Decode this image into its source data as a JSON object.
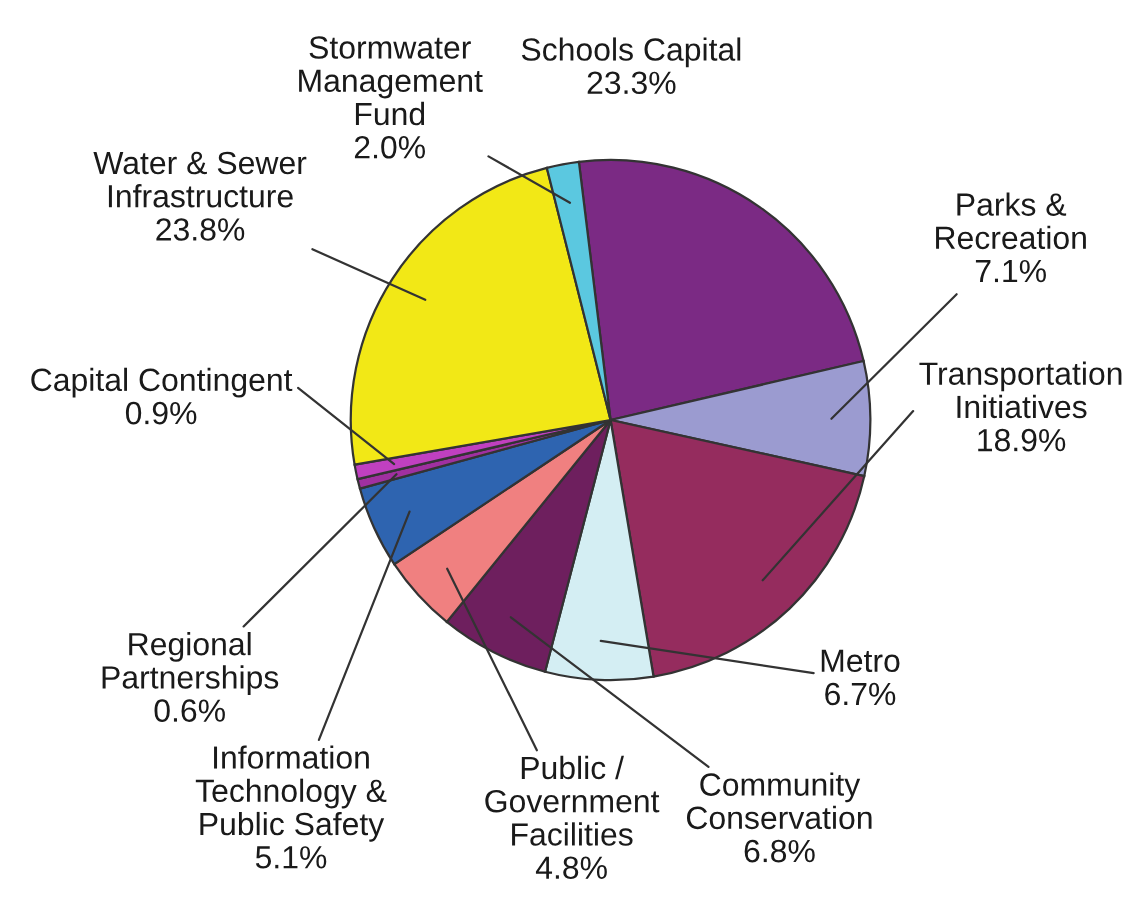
{
  "chart_data": {
    "type": "pie",
    "categories": [
      "Schools Capital",
      "Parks &\nRecreation",
      "Transportation\nInitiatives",
      "Metro",
      "Community\nConservation",
      "Public /\nGovernment\nFacilities",
      "Information\nTechnology &\nPublic Safety",
      "Regional\nPartnerships",
      "Capital Contingent",
      "Water & Sewer\nInfrastructure",
      "Stormwater\nManagement\nFund"
    ],
    "values": [
      23.3,
      7.1,
      18.9,
      6.7,
      6.8,
      4.8,
      5.1,
      0.6,
      0.9,
      23.8,
      2.0
    ],
    "colors": [
      "#7b2a84",
      "#9b9bd0",
      "#952c5e",
      "#d4eef3",
      "#6e1f5e",
      "#f08080",
      "#2e64b0",
      "#a030a0",
      "#c040c0",
      "#f2e816",
      "#5bc8e0"
    ],
    "value_labels": [
      "23.3%",
      "7.1%",
      "18.9%",
      "6.7%",
      "6.8%",
      "4.8%",
      "5.1%",
      "0.6%",
      "0.9%",
      "23.8%",
      "2.0%"
    ]
  }
}
